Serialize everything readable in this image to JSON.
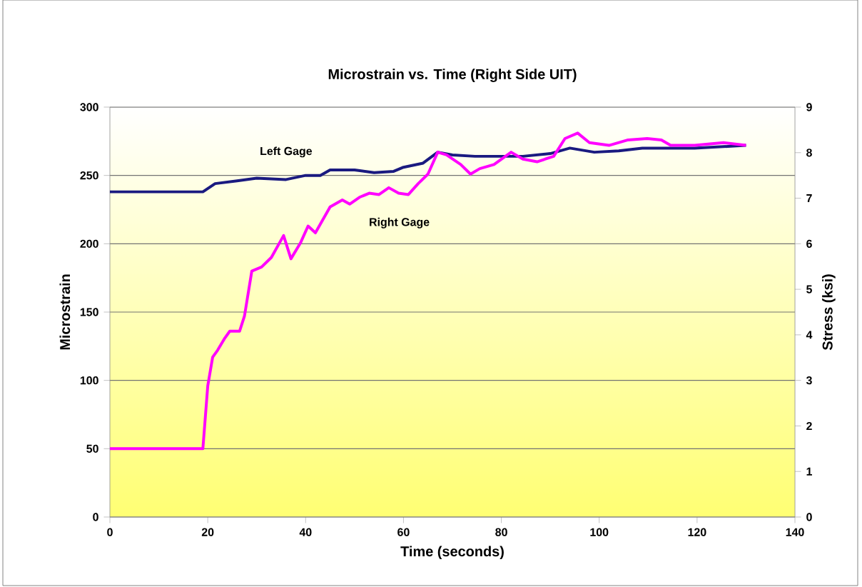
{
  "chart_data": {
    "type": "line",
    "title": "Microstrain vs. Time (Right Side UIT)",
    "xlabel": "Time (seconds)",
    "ylabel": "Microstrain",
    "y2label": "Stress (ksi)",
    "xlim": [
      0,
      140
    ],
    "xticks": [
      0,
      20,
      40,
      60,
      80,
      100,
      120,
      140
    ],
    "ylim": [
      0,
      300
    ],
    "yticks": [
      0,
      50,
      100,
      150,
      200,
      250,
      300
    ],
    "y2lim": [
      0,
      9
    ],
    "y2ticks": [
      0,
      1,
      2,
      3,
      4,
      5,
      6,
      7,
      8,
      9
    ],
    "grid": "y",
    "legend": false,
    "marker": "none",
    "line_style": "solid",
    "series": [
      {
        "name": "Left Gage",
        "color": "#1a1a80",
        "x": [
          0,
          10,
          19,
          21.5,
          26,
          30,
          36,
          40,
          43,
          45,
          50,
          54,
          58,
          60,
          64,
          67,
          70,
          74.6,
          84.4,
          90,
          94,
          99,
          104,
          108.8,
          113.7,
          119.5,
          130
        ],
        "values": [
          238,
          238,
          238,
          244,
          246,
          248,
          247,
          250,
          250,
          254,
          254,
          252,
          253,
          256,
          259,
          267,
          265,
          264,
          264,
          266,
          270,
          267,
          268,
          270,
          270,
          270,
          272
        ]
      },
      {
        "name": "Right Gage",
        "color": "#ff00ff",
        "x": [
          0,
          10,
          19,
          20,
          21,
          22,
          23.5,
          24.5,
          26.5,
          27.5,
          29,
          31,
          33,
          35.5,
          37,
          39,
          40.5,
          42,
          45,
          47.5,
          49,
          51,
          53,
          55,
          57,
          59,
          61,
          63,
          65,
          67,
          68.8,
          71.7,
          73.7,
          75.6,
          78.5,
          82,
          84.4,
          87.3,
          90.7,
          93,
          95.6,
          98,
          102,
          105.9,
          109.8,
          112.7,
          114.6,
          119.5,
          125.4,
          130
        ],
        "values": [
          50,
          50,
          50,
          96,
          117,
          122,
          131,
          136,
          136,
          147,
          180,
          183,
          190,
          206,
          189,
          201,
          213,
          208,
          227,
          232,
          229,
          234,
          237,
          236,
          241,
          237,
          236,
          244,
          251,
          267,
          265,
          258,
          251,
          255,
          258,
          267,
          262,
          260,
          264,
          277,
          281,
          274,
          272,
          276,
          277,
          276,
          272,
          272,
          274,
          272
        ]
      }
    ]
  }
}
